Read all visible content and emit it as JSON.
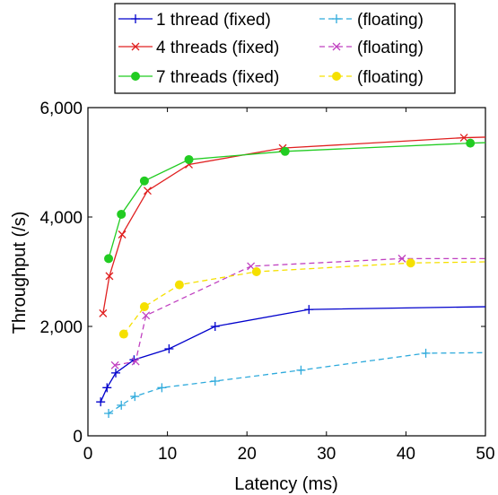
{
  "chart_data": {
    "type": "line",
    "title": "",
    "xlabel": "Latency (ms)",
    "ylabel": "Throughput (/s)",
    "xlim": [
      0,
      50
    ],
    "ylim": [
      0,
      6000
    ],
    "x_ticks": [
      0,
      10,
      20,
      30,
      40,
      50
    ],
    "y_ticks": [
      0,
      2000,
      4000,
      6000
    ],
    "x_tick_labels": [
      "0",
      "10",
      "20",
      "30",
      "40",
      "50"
    ],
    "y_tick_labels": [
      "0",
      "2,000",
      "4,000",
      "6,000"
    ],
    "grid": false,
    "legend_position": "top (above plot), two columns",
    "series": [
      {
        "name": "1 thread (fixed)",
        "color": "#0000cc",
        "dash": "solid",
        "marker": "plus",
        "points": [
          [
            1.6,
            620
          ],
          [
            2.4,
            880
          ],
          [
            3.5,
            1150
          ],
          [
            5.8,
            1390
          ],
          [
            10.2,
            1590
          ],
          [
            16.0,
            2000
          ],
          [
            27.8,
            2310
          ],
          [
            50,
            2360
          ]
        ]
      },
      {
        "name": "(floating)",
        "color": "#2eaadc",
        "dash": "dashed",
        "marker": "plus",
        "points": [
          [
            2.6,
            410
          ],
          [
            4.2,
            560
          ],
          [
            5.9,
            720
          ],
          [
            9.3,
            880
          ],
          [
            16.0,
            1000
          ],
          [
            26.8,
            1200
          ],
          [
            42.5,
            1510
          ],
          [
            50,
            1520
          ]
        ]
      },
      {
        "name": "4 threads (fixed)",
        "color": "#e02020",
        "dash": "solid",
        "marker": "x",
        "points": [
          [
            1.9,
            2240
          ],
          [
            2.7,
            2920
          ],
          [
            4.3,
            3680
          ],
          [
            7.5,
            4480
          ],
          [
            12.7,
            4960
          ],
          [
            24.5,
            5260
          ],
          [
            47.3,
            5450
          ],
          [
            50,
            5460
          ]
        ]
      },
      {
        "name": "(floating)",
        "color": "#c040c0",
        "dash": "dashed",
        "marker": "x",
        "points": [
          [
            3.4,
            1290
          ],
          [
            6.0,
            1360
          ],
          [
            7.3,
            2200
          ],
          [
            20.5,
            3100
          ],
          [
            39.5,
            3240
          ],
          [
            50,
            3240
          ]
        ]
      },
      {
        "name": "7 threads (fixed)",
        "color": "#22cc22",
        "dash": "solid",
        "marker": "dot",
        "points": [
          [
            2.6,
            3240
          ],
          [
            4.2,
            4050
          ],
          [
            7.1,
            4660
          ],
          [
            12.7,
            5050
          ],
          [
            24.8,
            5200
          ],
          [
            48.1,
            5350
          ],
          [
            50,
            5360
          ]
        ]
      },
      {
        "name": "(floating)",
        "color": "#f5e000",
        "dash": "dashed",
        "marker": "dot",
        "points": [
          [
            4.5,
            1860
          ],
          [
            7.1,
            2360
          ],
          [
            11.5,
            2760
          ],
          [
            21.2,
            3000
          ],
          [
            40.6,
            3160
          ],
          [
            50,
            3180
          ]
        ]
      }
    ]
  }
}
